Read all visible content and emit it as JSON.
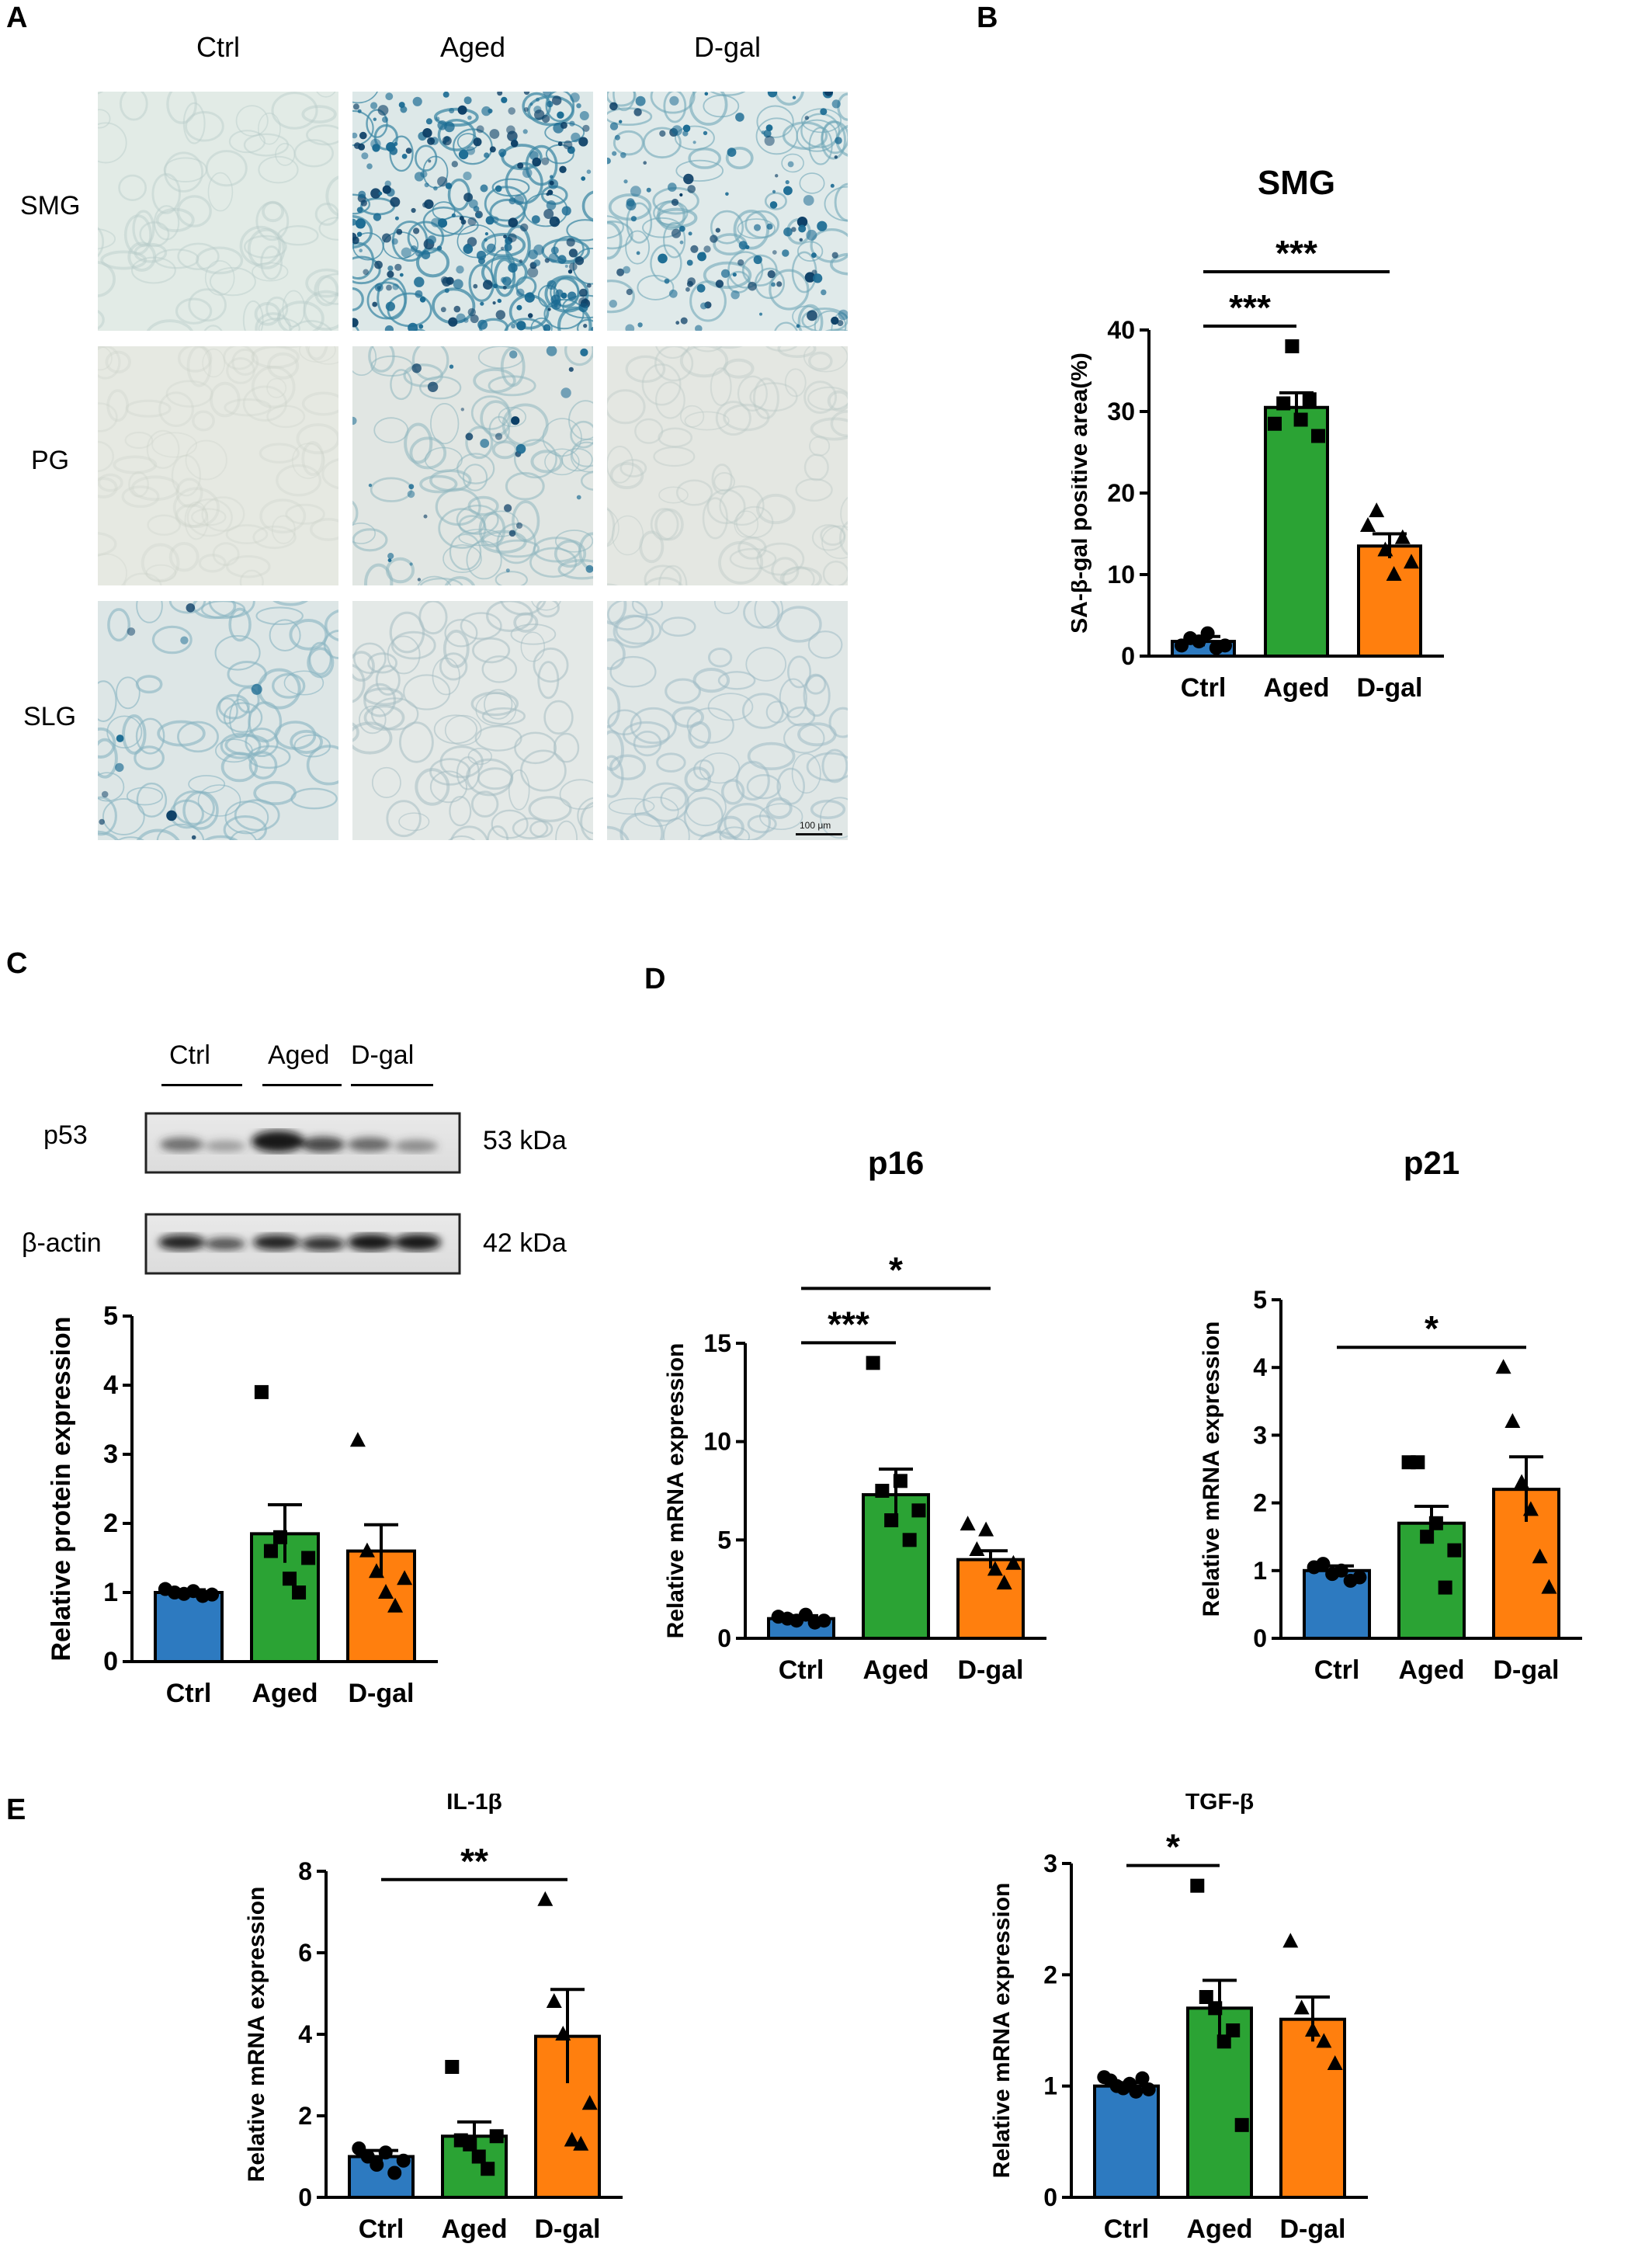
{
  "panels": {
    "A": "A",
    "B": "B",
    "C": "C",
    "D": "D",
    "E": "E"
  },
  "colors": {
    "ctrl": "#2d7ac0",
    "aged": "#2ba334",
    "dgal": "#ff7f0e"
  },
  "micro": {
    "columns": [
      "Ctrl",
      "Aged",
      "D-gal"
    ],
    "rows": [
      "SMG",
      "PG",
      "SLG"
    ],
    "scale_label": "100 μm"
  },
  "blot": {
    "groups": [
      "Ctrl",
      "Aged",
      "D-gal"
    ],
    "bands": [
      {
        "name": "p53",
        "size": "53 kDa"
      },
      {
        "name": "β-actin",
        "size": "42 kDa"
      }
    ]
  },
  "chart_data": [
    {
      "id": "B",
      "type": "bar",
      "title": "SMG",
      "categories": [
        "Ctrl",
        "Aged",
        "D-gal"
      ],
      "values": [
        1.8,
        30.5,
        13.5
      ],
      "errors": [
        0.6,
        1.8,
        1.5
      ],
      "points": [
        [
          1.3,
          2.2,
          1.8,
          2.8,
          1.0,
          1.3
        ],
        [
          28.5,
          31.0,
          38.0,
          29.0,
          31.5,
          27.0
        ],
        [
          16.0,
          17.8,
          13.0,
          10.0,
          14.5,
          11.5
        ]
      ],
      "ylabel": "SA-β-gal positive area(%)",
      "ylim": [
        0,
        40
      ],
      "yticks": [
        0,
        10,
        20,
        30,
        40
      ],
      "sig": [
        {
          "from": 0,
          "to": 1,
          "label": "***"
        },
        {
          "from": 0,
          "to": 2,
          "label": "***"
        }
      ]
    },
    {
      "id": "C",
      "type": "bar",
      "title": "",
      "categories": [
        "Ctrl",
        "Aged",
        "D-gal"
      ],
      "values": [
        1.0,
        1.85,
        1.6
      ],
      "errors": [
        0.04,
        0.42,
        0.38
      ],
      "points": [
        [
          1.05,
          1.0,
          0.98,
          1.02,
          0.95,
          0.97
        ],
        [
          3.9,
          1.6,
          1.8,
          1.2,
          1.0,
          1.5
        ],
        [
          3.2,
          1.6,
          1.3,
          1.0,
          0.8,
          1.2
        ]
      ],
      "ylabel": "Relative protein expression",
      "ylim": [
        0,
        5
      ],
      "yticks": [
        0,
        1,
        2,
        3,
        4,
        5
      ],
      "sig": []
    },
    {
      "id": "D1",
      "type": "bar",
      "title": "p16",
      "categories": [
        "Ctrl",
        "Aged",
        "D-gal"
      ],
      "values": [
        1.0,
        7.3,
        4.0
      ],
      "errors": [
        0.15,
        1.3,
        0.45
      ],
      "points": [
        [
          1.1,
          1.0,
          0.9,
          1.2,
          0.8,
          0.9
        ],
        [
          14.0,
          7.5,
          6.0,
          8.0,
          5.0,
          6.5
        ],
        [
          5.8,
          4.5,
          5.5,
          3.5,
          2.8,
          3.8
        ]
      ],
      "ylabel": "Relative mRNA expression",
      "ylim": [
        0,
        15
      ],
      "yticks": [
        0,
        5,
        10,
        15
      ],
      "sig": [
        {
          "from": 0,
          "to": 1,
          "label": "***"
        },
        {
          "from": 0,
          "to": 2,
          "label": "*"
        }
      ]
    },
    {
      "id": "D2",
      "type": "bar",
      "title": "p21",
      "categories": [
        "Ctrl",
        "Aged",
        "D-gal"
      ],
      "values": [
        1.0,
        1.7,
        2.2
      ],
      "errors": [
        0.07,
        0.25,
        0.48
      ],
      "points": [
        [
          1.05,
          1.1,
          0.95,
          1.0,
          0.85,
          0.9
        ],
        [
          2.6,
          2.6,
          1.5,
          1.7,
          0.75,
          1.3
        ],
        [
          4.0,
          3.2,
          2.3,
          1.9,
          1.2,
          0.75
        ]
      ],
      "ylabel": "Relative mRNA expression",
      "ylim": [
        0,
        5
      ],
      "yticks": [
        0,
        1,
        2,
        3,
        4,
        5
      ],
      "sig": [
        {
          "from": 0,
          "to": 2,
          "label": "*"
        }
      ]
    },
    {
      "id": "E1",
      "type": "bar",
      "title": "IL-1β",
      "categories": [
        "Ctrl",
        "Aged",
        "D-gal"
      ],
      "values": [
        1.0,
        1.5,
        3.95
      ],
      "errors": [
        0.15,
        0.35,
        1.15
      ],
      "points": [
        [
          1.2,
          1.0,
          0.8,
          1.1,
          0.6,
          0.9
        ],
        [
          3.2,
          1.4,
          1.3,
          1.0,
          0.7,
          1.5
        ],
        [
          7.3,
          4.8,
          4.0,
          1.4,
          1.3,
          2.3
        ]
      ],
      "ylabel": "Relative mRNA expression",
      "ylim": [
        0,
        8
      ],
      "yticks": [
        0,
        2,
        4,
        6,
        8
      ],
      "sig": [
        {
          "from": 0,
          "to": 2,
          "label": "**"
        }
      ]
    },
    {
      "id": "E2",
      "type": "bar",
      "title": "TGF-β",
      "categories": [
        "Ctrl",
        "Aged",
        "D-gal"
      ],
      "values": [
        1.0,
        1.7,
        1.6
      ],
      "errors": [
        0.03,
        0.25,
        0.2
      ],
      "points": [
        [
          1.08,
          1.05,
          1.0,
          0.98,
          1.02,
          0.95,
          1.07,
          0.97
        ],
        [
          2.8,
          1.8,
          1.7,
          1.4,
          1.5,
          0.65
        ],
        [
          2.3,
          1.7,
          1.5,
          1.4,
          1.2
        ]
      ],
      "ylabel": "Relative mRNA expression",
      "ylim": [
        0,
        3
      ],
      "yticks": [
        0,
        1,
        2,
        3
      ],
      "sig": [
        {
          "from": 0,
          "to": 1,
          "label": "*"
        }
      ]
    }
  ]
}
